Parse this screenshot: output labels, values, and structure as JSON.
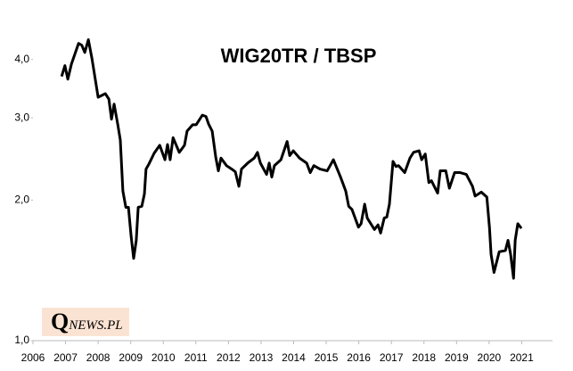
{
  "chart_data": {
    "type": "line",
    "title": "WIG20TR / TBSP",
    "logo": "QNEWS.PL",
    "x": [
      2006.88,
      2006.98,
      2007.07,
      2007.18,
      2007.4,
      2007.5,
      2007.59,
      2007.7,
      2007.81,
      2008.0,
      2008.22,
      2008.33,
      2008.41,
      2008.49,
      2008.6,
      2008.68,
      2008.76,
      2008.85,
      2008.93,
      2009.01,
      2009.09,
      2009.17,
      2009.23,
      2009.34,
      2009.42,
      2009.47,
      2009.56,
      2009.72,
      2009.89,
      2010.05,
      2010.13,
      2010.21,
      2010.3,
      2010.49,
      2010.65,
      2010.73,
      2010.9,
      2011.01,
      2011.2,
      2011.31,
      2011.39,
      2011.5,
      2011.61,
      2011.69,
      2011.77,
      2011.94,
      2012.1,
      2012.21,
      2012.32,
      2012.4,
      2012.59,
      2012.79,
      2012.89,
      2012.98,
      2013.17,
      2013.25,
      2013.33,
      2013.41,
      2013.61,
      2013.8,
      2013.88,
      2013.99,
      2014.18,
      2014.4,
      2014.51,
      2014.62,
      2014.81,
      2015.03,
      2015.22,
      2015.44,
      2015.6,
      2015.69,
      2015.79,
      2015.99,
      2016.07,
      2016.18,
      2016.26,
      2016.48,
      2016.59,
      2016.67,
      2016.78,
      2016.86,
      2016.94,
      2017.05,
      2017.14,
      2017.22,
      2017.41,
      2017.57,
      2017.68,
      2017.85,
      2017.93,
      2018.04,
      2018.15,
      2018.23,
      2018.42,
      2018.5,
      2018.67,
      2018.78,
      2018.94,
      2019.11,
      2019.3,
      2019.49,
      2019.57,
      2019.76,
      2019.93,
      2020.01,
      2020.06,
      2020.15,
      2020.31,
      2020.5,
      2020.58,
      2020.66,
      2020.75,
      2020.8,
      2020.88,
      2020.99
    ],
    "series": [
      {
        "color": "#000000",
        "values": [
          3.68,
          3.88,
          3.63,
          3.91,
          4.33,
          4.29,
          4.14,
          4.41,
          4.02,
          3.32,
          3.38,
          3.29,
          2.98,
          3.21,
          2.91,
          2.69,
          2.09,
          1.93,
          1.93,
          1.68,
          1.5,
          1.64,
          1.93,
          1.94,
          2.06,
          2.33,
          2.39,
          2.52,
          2.62,
          2.44,
          2.63,
          2.44,
          2.72,
          2.53,
          2.62,
          2.81,
          2.9,
          2.9,
          3.04,
          3.02,
          2.91,
          2.81,
          2.47,
          2.31,
          2.46,
          2.37,
          2.33,
          2.3,
          2.14,
          2.33,
          2.4,
          2.46,
          2.53,
          2.4,
          2.27,
          2.4,
          2.24,
          2.37,
          2.44,
          2.67,
          2.49,
          2.55,
          2.46,
          2.4,
          2.29,
          2.37,
          2.33,
          2.31,
          2.44,
          2.24,
          2.09,
          1.94,
          1.91,
          1.75,
          1.78,
          1.96,
          1.83,
          1.73,
          1.77,
          1.7,
          1.83,
          1.84,
          1.96,
          2.42,
          2.36,
          2.37,
          2.29,
          2.46,
          2.53,
          2.55,
          2.44,
          2.51,
          2.18,
          2.2,
          2.07,
          2.31,
          2.31,
          2.12,
          2.29,
          2.29,
          2.27,
          2.14,
          2.04,
          2.08,
          2.03,
          1.75,
          1.53,
          1.4,
          1.55,
          1.56,
          1.64,
          1.53,
          1.36,
          1.64,
          1.78,
          1.74
        ]
      }
    ],
    "xlim": [
      2006,
      2022
    ],
    "xticks": [
      2006,
      2007,
      2008,
      2009,
      2010,
      2011,
      2012,
      2013,
      2014,
      2015,
      2016,
      2017,
      2018,
      2019,
      2020,
      2021
    ],
    "ylim": [
      1,
      4.7
    ],
    "yticks": [
      {
        "value": 1,
        "label": "1,0"
      },
      {
        "value": 2,
        "label": "2,0"
      },
      {
        "value": 3,
        "label": "3,0"
      },
      {
        "value": 4,
        "label": "4,0"
      }
    ],
    "log_scale": true
  }
}
